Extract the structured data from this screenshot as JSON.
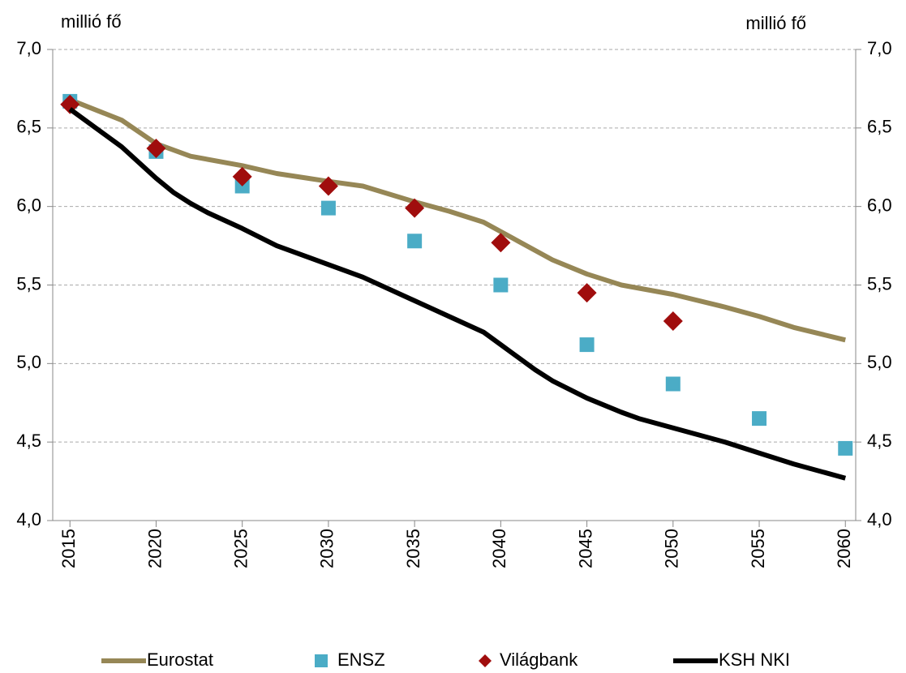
{
  "chart_data": {
    "type": "line",
    "y_label": "millió fő",
    "y2_label": "millió fő",
    "xlim": [
      2014,
      2060.6
    ],
    "xticks": [
      2015,
      2020,
      2025,
      2030,
      2035,
      2040,
      2045,
      2050,
      2055,
      2060
    ],
    "ylim": [
      4.0,
      7.0
    ],
    "yticks": [
      {
        "value": 4.0,
        "label": "4,0"
      },
      {
        "value": 4.5,
        "label": "4,5"
      },
      {
        "value": 5.0,
        "label": "5,0"
      },
      {
        "value": 5.5,
        "label": "5,5"
      },
      {
        "value": 6.0,
        "label": "6,0"
      },
      {
        "value": 6.5,
        "label": "6,5"
      },
      {
        "value": 7.0,
        "label": "7,0"
      }
    ],
    "y2lim": [
      4.0,
      7.0
    ],
    "y2ticks": [
      {
        "value": 4.0,
        "label": "4,0"
      },
      {
        "value": 4.5,
        "label": "4,5"
      },
      {
        "value": 5.0,
        "label": "5,0"
      },
      {
        "value": 5.5,
        "label": "5,5"
      },
      {
        "value": 6.0,
        "label": "6,0"
      },
      {
        "value": 6.5,
        "label": "6,5"
      },
      {
        "value": 7.0,
        "label": "7,0"
      }
    ],
    "grid": true,
    "legend": "bottom",
    "series": [
      {
        "name": "Eurostat",
        "color": "#968756",
        "marker": "line",
        "x": [
          2015,
          2018,
          2020,
          2022,
          2025,
          2027,
          2030,
          2032,
          2035,
          2037,
          2039,
          2040,
          2043,
          2045,
          2047,
          2050,
          2053,
          2055,
          2057,
          2060
        ],
        "values": [
          6.68,
          6.55,
          6.4,
          6.32,
          6.26,
          6.21,
          6.16,
          6.13,
          6.03,
          5.97,
          5.9,
          5.84,
          5.66,
          5.57,
          5.5,
          5.44,
          5.36,
          5.3,
          5.23,
          5.15
        ]
      },
      {
        "name": "ENSZ",
        "color": "#4bacc6",
        "marker": "square",
        "x": [
          2015,
          2020,
          2025,
          2030,
          2035,
          2040,
          2045,
          2050,
          2055,
          2060
        ],
        "values": [
          6.67,
          6.35,
          6.13,
          5.99,
          5.78,
          5.5,
          5.12,
          4.87,
          4.65,
          4.46
        ]
      },
      {
        "name": "Világbank",
        "color": "#a00d0d",
        "marker": "diamond",
        "x": [
          2015,
          2020,
          2025,
          2030,
          2035,
          2040,
          2045,
          2050
        ],
        "values": [
          6.65,
          6.37,
          6.19,
          6.13,
          5.99,
          5.77,
          5.45,
          5.27
        ]
      },
      {
        "name": "KSH NKI",
        "color": "#000000",
        "marker": "line",
        "x": [
          2015,
          2018,
          2020,
          2021,
          2022,
          2023,
          2025,
          2027,
          2030,
          2032,
          2035,
          2037,
          2039,
          2040,
          2042,
          2043,
          2045,
          2047,
          2048,
          2050,
          2053,
          2055,
          2057,
          2060
        ],
        "values": [
          6.62,
          6.38,
          6.18,
          6.09,
          6.02,
          5.96,
          5.86,
          5.75,
          5.63,
          5.55,
          5.4,
          5.3,
          5.2,
          5.12,
          4.96,
          4.89,
          4.78,
          4.69,
          4.65,
          4.59,
          4.5,
          4.43,
          4.36,
          4.27
        ]
      }
    ]
  }
}
